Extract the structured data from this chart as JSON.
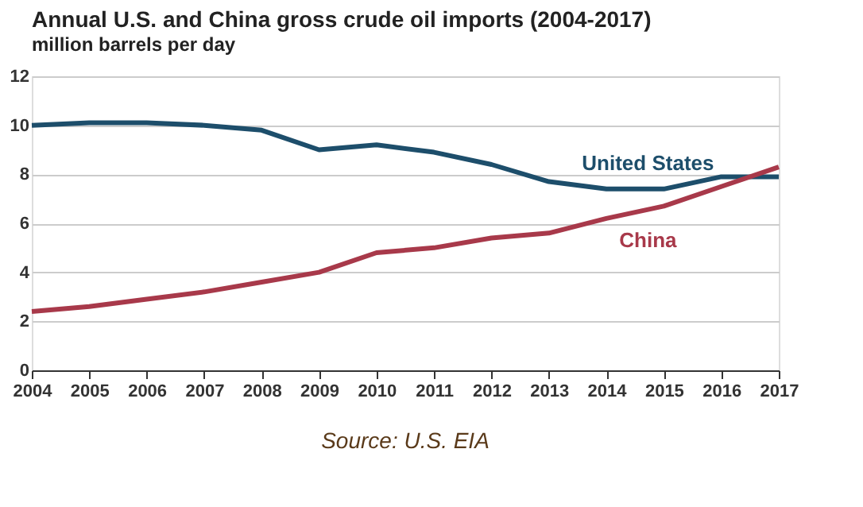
{
  "chart_data": {
    "type": "line",
    "title": "Annual U.S. and China gross crude oil imports (2004-2017)",
    "subtitle": "million barrels per day",
    "x": [
      2004,
      2005,
      2006,
      2007,
      2008,
      2009,
      2010,
      2011,
      2012,
      2013,
      2014,
      2015,
      2016,
      2017
    ],
    "series": [
      {
        "name": "United States",
        "color": "#1d4e6b",
        "values": [
          10.0,
          10.1,
          10.1,
          10.0,
          9.8,
          9.0,
          9.2,
          8.9,
          8.4,
          7.7,
          7.4,
          7.4,
          7.9,
          7.9
        ]
      },
      {
        "name": "China",
        "color": "#a8394a",
        "values": [
          2.4,
          2.6,
          2.9,
          3.2,
          3.6,
          4.0,
          4.8,
          5.0,
          5.4,
          5.6,
          6.2,
          6.7,
          7.5,
          8.3
        ]
      }
    ],
    "xlim": [
      2004,
      2017
    ],
    "xticks": [
      2004,
      2005,
      2006,
      2007,
      2008,
      2009,
      2010,
      2011,
      2012,
      2013,
      2014,
      2015,
      2016,
      2017
    ],
    "ylim": [
      0,
      12
    ],
    "yticks": [
      0,
      2,
      4,
      6,
      8,
      10,
      12
    ],
    "grid": "y",
    "legend": false,
    "marker": "none",
    "line_style": "solid",
    "annotations": [
      "Source: U.S. EIA"
    ]
  }
}
